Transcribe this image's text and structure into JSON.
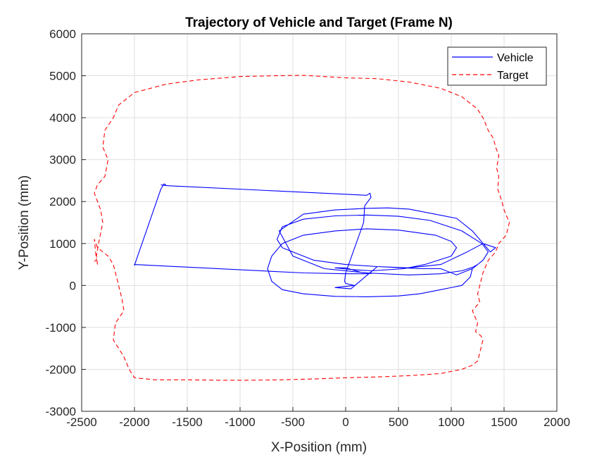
{
  "chart_data": {
    "type": "line",
    "title": "Trajectory of Vehicle and Target (Frame N)",
    "xlabel": "X-Position (mm)",
    "ylabel": "Y-Position (mm)",
    "xlim": [
      -2500,
      2000
    ],
    "ylim": [
      -3000,
      6000
    ],
    "xticks": [
      -2500,
      -2000,
      -1500,
      -1000,
      -500,
      0,
      500,
      1000,
      1500,
      2000
    ],
    "yticks": [
      -3000,
      -2000,
      -1000,
      0,
      1000,
      2000,
      3000,
      4000,
      5000,
      6000
    ],
    "grid": true,
    "legend_position": "top-right",
    "series": [
      {
        "name": "Vehicle",
        "color": "#0000ff",
        "style": "solid",
        "x": [
          -1750,
          -1700,
          200,
          230,
          240,
          180,
          170,
          0,
          -10,
          0,
          80,
          -100,
          50,
          300,
          700,
          900,
          1050,
          1200,
          1300,
          1350,
          1290,
          1100,
          800,
          500,
          200,
          -100,
          -400,
          -600,
          -650,
          -600,
          -300,
          0,
          300,
          600,
          900,
          1150,
          1300,
          1420,
          1370,
          1200,
          1050,
          600,
          400,
          200,
          -100,
          -400,
          -630,
          -500,
          -200,
          200,
          600,
          900,
          1100,
          1200,
          1250,
          1200,
          1180,
          1100,
          900,
          700,
          500,
          200,
          -100,
          -400,
          -600,
          -700,
          -740,
          -700,
          -600,
          -400,
          -100,
          200,
          500,
          850,
          1000,
          1050,
          1000,
          750,
          550,
          250,
          50,
          -100,
          0,
          150,
          250,
          200,
          0,
          -400,
          -2000,
          -2000,
          -1750,
          -1720,
          -1700
        ],
        "y": [
          2400,
          2380,
          2150,
          2200,
          2100,
          1900,
          1500,
          300,
          100,
          50,
          0,
          -50,
          -80,
          450,
          400,
          400,
          250,
          400,
          600,
          800,
          1000,
          1300,
          1550,
          1650,
          1680,
          1660,
          1580,
          1400,
          1100,
          900,
          600,
          500,
          450,
          420,
          500,
          800,
          1000,
          900,
          800,
          1300,
          1600,
          1820,
          1850,
          1840,
          1800,
          1700,
          1300,
          700,
          400,
          300,
          250,
          280,
          350,
          430,
          500,
          400,
          200,
          0,
          -100,
          -200,
          -250,
          -270,
          -260,
          -200,
          -100,
          100,
          400,
          700,
          1000,
          1200,
          1300,
          1350,
          1320,
          1200,
          1050,
          900,
          700,
          500,
          400,
          350,
          380,
          420,
          420,
          310,
          290,
          280,
          280,
          300,
          500,
          480,
          2300,
          2420,
          2400
        ]
      },
      {
        "name": "Target",
        "color": "#ff0000",
        "style": "dashed",
        "x": [
          -2350,
          -2360,
          -2340,
          -2300,
          -2320,
          -2380,
          -2350,
          -2280,
          -2250,
          -2300,
          -2280,
          -2200,
          -2150,
          -2000,
          -1700,
          -1400,
          -1000,
          -700,
          -400,
          -200,
          0,
          300,
          600,
          900,
          1100,
          1200,
          1250,
          1300,
          1350,
          1400,
          1420,
          1450,
          1430,
          1450,
          1440,
          1480,
          1500,
          1550,
          1520,
          1450,
          1420,
          1350,
          1300,
          1280,
          1250,
          1270,
          1200,
          1250,
          1230,
          1280,
          1300,
          1280,
          1250,
          1200,
          1100,
          900,
          600,
          300,
          0,
          -300,
          -600,
          -900,
          -1200,
          -1500,
          -1800,
          -2000,
          -2050,
          -2100,
          -2200,
          -2180,
          -2100,
          -2120,
          -2150,
          -2180,
          -2200,
          -2250,
          -2350,
          -2380,
          -2360,
          -2400
        ],
        "y": [
          500,
          700,
          1000,
          1500,
          1800,
          2200,
          2400,
          2600,
          3000,
          3300,
          3700,
          4000,
          4300,
          4600,
          4800,
          4900,
          4980,
          5000,
          5010,
          4980,
          4950,
          4930,
          4850,
          4700,
          4500,
          4300,
          4200,
          4000,
          3700,
          3500,
          3300,
          3100,
          2800,
          2600,
          2300,
          2000,
          1800,
          1500,
          1200,
          1000,
          800,
          600,
          300,
          100,
          -200,
          -400,
          -600,
          -900,
          -1100,
          -1200,
          -1300,
          -1500,
          -1800,
          -1900,
          -2000,
          -2100,
          -2150,
          -2180,
          -2200,
          -2230,
          -2250,
          -2260,
          -2260,
          -2250,
          -2250,
          -2200,
          -2000,
          -1700,
          -1300,
          -900,
          -600,
          -300,
          0,
          300,
          500,
          700,
          900,
          1100,
          600,
          550
        ]
      }
    ]
  }
}
